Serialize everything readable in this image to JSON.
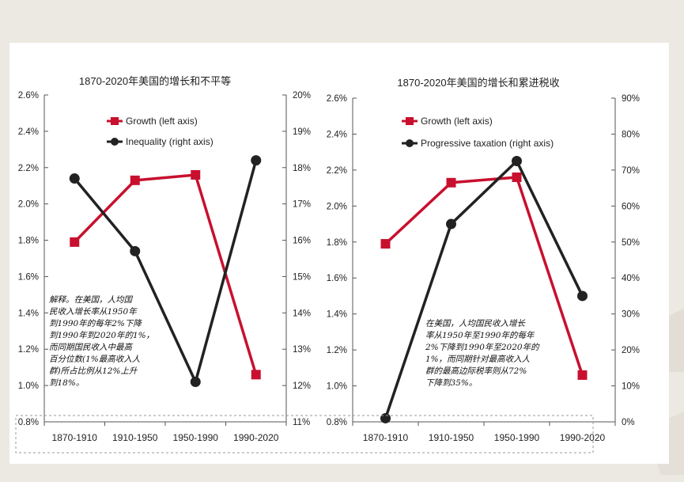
{
  "chart_data": [
    {
      "type": "line",
      "title": "1870-2020年美国的增长和不平等",
      "categories": [
        "1870-1910",
        "1910-1950",
        "1950-1990",
        "1990-2020"
      ],
      "series": [
        {
          "name": "Growth (left axis)",
          "axis": "left",
          "color": "#c8102e",
          "marker": "square",
          "values": [
            1.79,
            2.13,
            2.16,
            1.06
          ]
        },
        {
          "name": "Inequality (right axis)",
          "axis": "right",
          "color": "#222222",
          "marker": "circle",
          "values": [
            17.7,
            15.7,
            12.1,
            18.2
          ]
        }
      ],
      "left_axis": {
        "min": 0.8,
        "max": 2.6,
        "ticks": [
          "0.8%",
          "1.0%",
          "1.2%",
          "1.4%",
          "1.6%",
          "1.8%",
          "2.0%",
          "2.2%",
          "2.4%",
          "2.6%"
        ]
      },
      "right_axis": {
        "min": 11,
        "max": 20,
        "ticks": [
          "11%",
          "12%",
          "13%",
          "14%",
          "15%",
          "16%",
          "17%",
          "18%",
          "19%",
          "20%"
        ]
      },
      "legend_position": "top",
      "note": "解释。在美国，人均国\n民收入增长率从1950年\n到1990年的每年2%下降\n到1990年到2020年的1%，\n而同期国民收入中最高\n百分位数(1%最高收入人\n群)所占比例从12%上升\n到18%。"
    },
    {
      "type": "line",
      "title": "1870-2020年美国的增长和累进税收",
      "categories": [
        "1870-1910",
        "1910-1950",
        "1950-1990",
        "1990-2020"
      ],
      "series": [
        {
          "name": "Growth (left axis)",
          "axis": "left",
          "color": "#c8102e",
          "marker": "square",
          "values": [
            1.79,
            2.13,
            2.16,
            1.06
          ]
        },
        {
          "name": "Progressive taxation (right axis)",
          "axis": "right",
          "color": "#222222",
          "marker": "circle",
          "values": [
            1,
            55,
            72.5,
            35
          ]
        }
      ],
      "left_axis": {
        "min": 0.8,
        "max": 2.6,
        "ticks": [
          "0.8%",
          "1.0%",
          "1.2%",
          "1.4%",
          "1.6%",
          "1.8%",
          "2.0%",
          "2.2%",
          "2.4%",
          "2.6%"
        ]
      },
      "right_axis": {
        "min": 0,
        "max": 90,
        "ticks": [
          "0%",
          "10%",
          "20%",
          "30%",
          "40%",
          "50%",
          "60%",
          "70%",
          "80%",
          "90%"
        ]
      },
      "legend_position": "top",
      "note": "在美国，人均国民收入增长\n率从1950年至1990年的每年\n2%下降到1990年至2020年的\n1%，而同期针对最高收入人\n群的最高边际税率则从72%\n下降到35%。"
    }
  ]
}
